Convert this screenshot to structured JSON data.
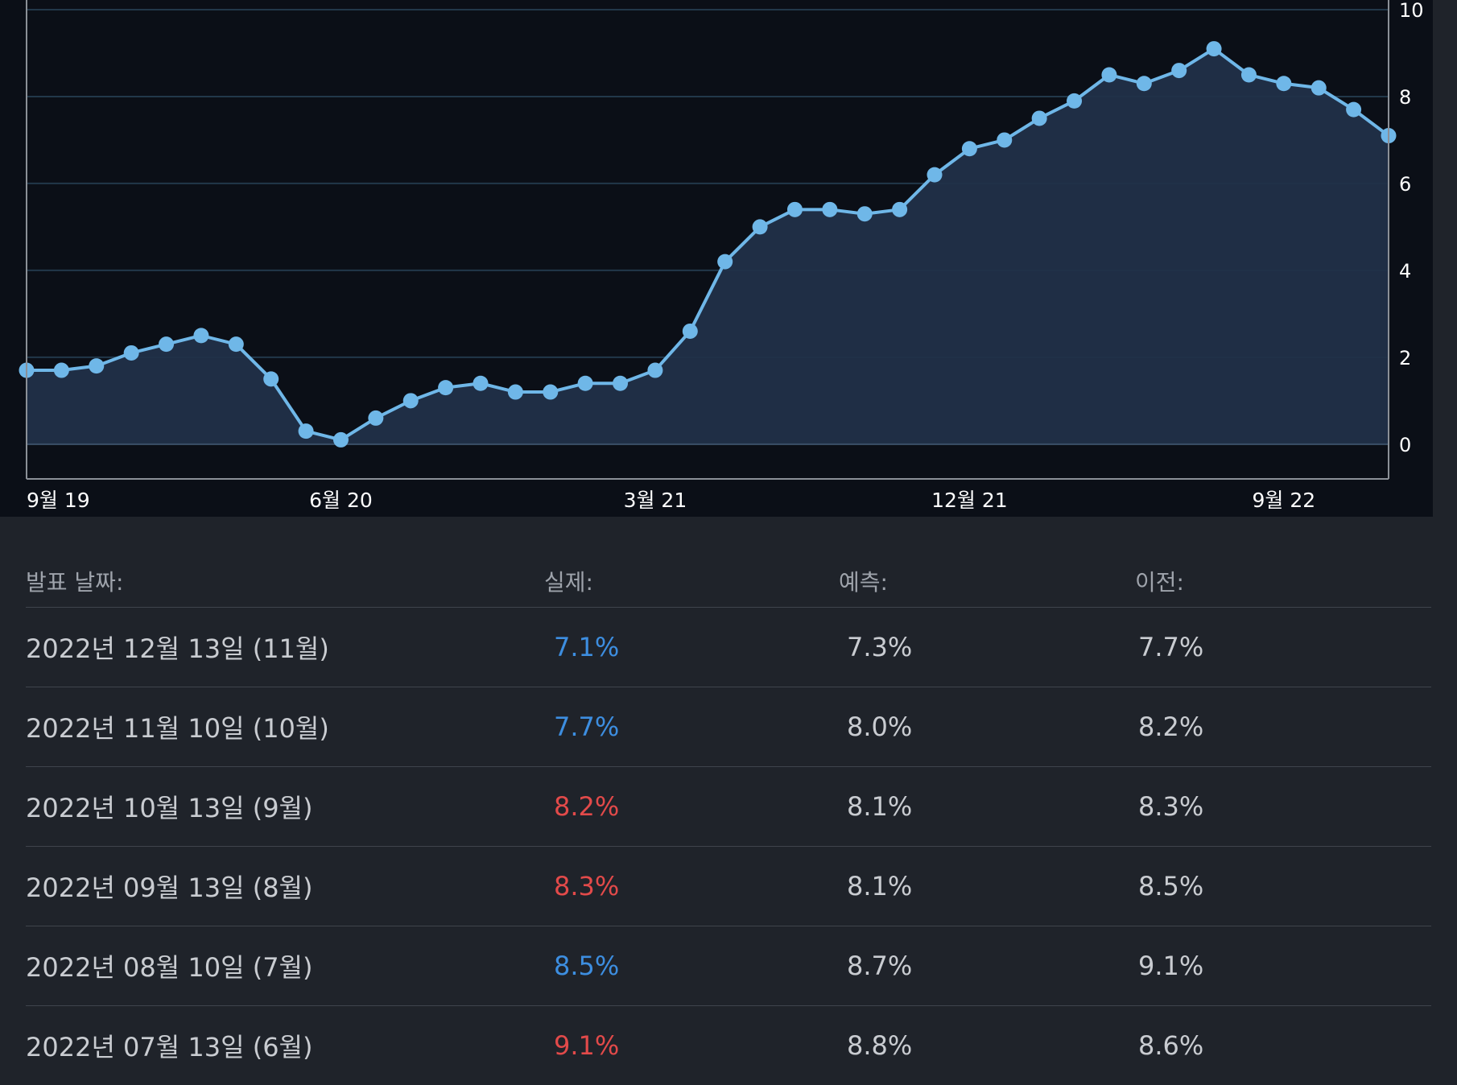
{
  "chart_data": {
    "type": "area",
    "x_tick_labels": [
      "9월 19",
      "6월 20",
      "3월 21",
      "12월 21",
      "9월 22"
    ],
    "y_ticks": [
      0,
      2,
      4,
      6,
      8,
      10
    ],
    "ylim": [
      -0.8,
      10
    ],
    "grid": true,
    "series": [
      {
        "values": [
          1.7,
          1.7,
          1.8,
          2.1,
          2.3,
          2.5,
          2.3,
          1.5,
          0.3,
          0.1,
          0.6,
          1.0,
          1.3,
          1.4,
          1.2,
          1.2,
          1.4,
          1.4,
          1.7,
          2.6,
          4.2,
          5.0,
          5.4,
          5.4,
          5.3,
          5.4,
          6.2,
          6.8,
          7.0,
          7.5,
          7.9,
          8.5,
          8.3,
          8.6,
          9.1,
          8.5,
          8.3,
          8.2,
          7.7,
          7.1
        ]
      }
    ],
    "colors": {
      "line": "#6fb7e8",
      "fill": "#213048",
      "background": "#0b0f17",
      "grid": "#22384a"
    }
  },
  "history": {
    "headers": {
      "date": "발표 날짜:",
      "actual": "실제:",
      "forecast": "예측:",
      "previous": "이전:"
    },
    "rows": [
      {
        "date": "2022년 12월 13일 (11월)",
        "actual": "7.1%",
        "forecast": "7.3%",
        "previous": "7.7%",
        "actual_color": "#3d8ee0"
      },
      {
        "date": "2022년 11월 10일 (10월)",
        "actual": "7.7%",
        "forecast": "8.0%",
        "previous": "8.2%",
        "actual_color": "#3d8ee0"
      },
      {
        "date": "2022년 10월 13일 (9월)",
        "actual": "8.2%",
        "forecast": "8.1%",
        "previous": "8.3%",
        "actual_color": "#e24a4a"
      },
      {
        "date": "2022년 09월 13일 (8월)",
        "actual": "8.3%",
        "forecast": "8.1%",
        "previous": "8.5%",
        "actual_color": "#e24a4a"
      },
      {
        "date": "2022년 08월 10일 (7월)",
        "actual": "8.5%",
        "forecast": "8.7%",
        "previous": "9.1%",
        "actual_color": "#3d8ee0"
      },
      {
        "date": "2022년 07월 13일 (6월)",
        "actual": "9.1%",
        "forecast": "8.8%",
        "previous": "8.6%",
        "actual_color": "#e24a4a"
      }
    ]
  }
}
